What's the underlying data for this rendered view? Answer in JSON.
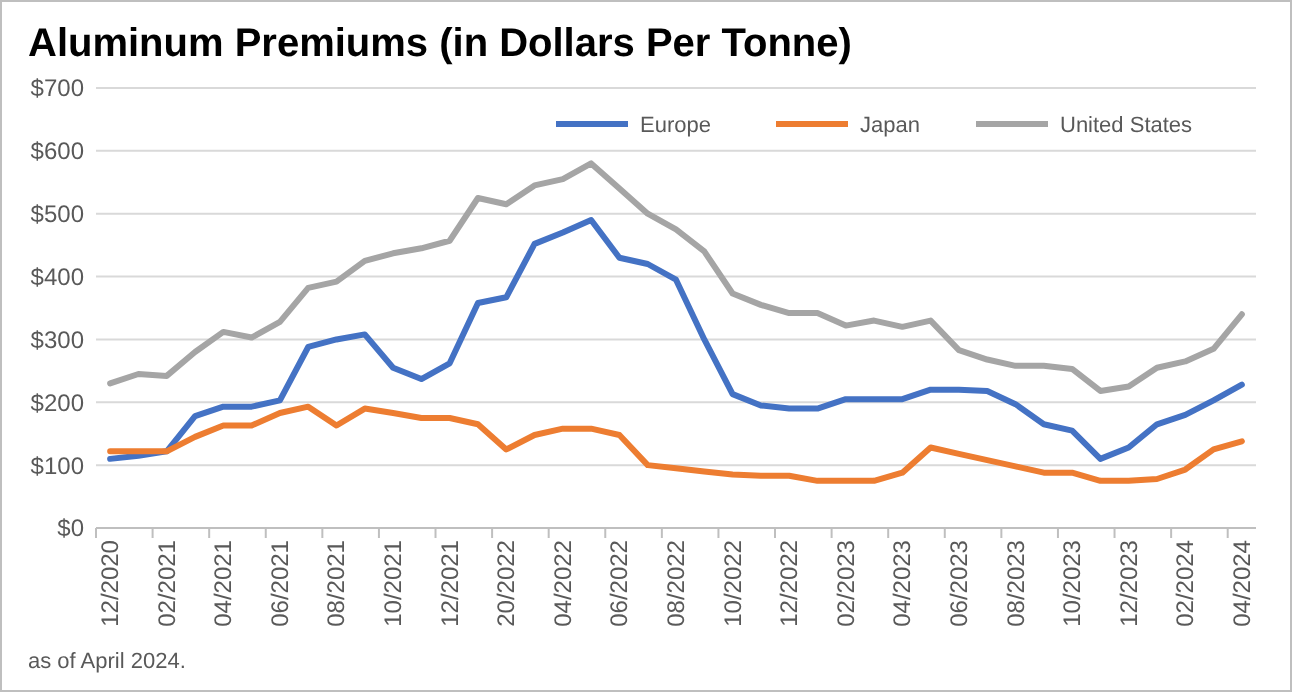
{
  "chart_data": {
    "type": "line",
    "title": "Aluminum Premiums (in Dollars Per Tonne)",
    "categories": [
      "12/2020",
      null,
      "02/2021",
      null,
      "04/2021",
      null,
      "06/2021",
      null,
      "08/2021",
      null,
      "10/2021",
      null,
      "12/2021",
      null,
      "20/2022",
      null,
      "04/2022",
      null,
      "06/2022",
      null,
      "08/2022",
      null,
      "10/2022",
      null,
      "12/2022",
      null,
      "02/2023",
      null,
      "04/2023",
      null,
      "06/2023",
      null,
      "08/2023",
      null,
      "10/2023",
      null,
      "12/2023",
      null,
      "02/2024",
      null,
      "04/2024"
    ],
    "series": [
      {
        "name": "Europe",
        "color": "#4472c4",
        "values": [
          110,
          115,
          122,
          178,
          193,
          193,
          203,
          288,
          300,
          308,
          255,
          237,
          262,
          358,
          367,
          452,
          470,
          490,
          430,
          420,
          395,
          300,
          213,
          195,
          190,
          190,
          205,
          205,
          205,
          220,
          220,
          218,
          197,
          165,
          155,
          110,
          128,
          165,
          180,
          203,
          228
        ]
      },
      {
        "name": "Japan",
        "color": "#ed7d31",
        "values": [
          122,
          122,
          122,
          145,
          163,
          163,
          183,
          193,
          163,
          190,
          183,
          175,
          175,
          165,
          125,
          148,
          158,
          158,
          148,
          100,
          95,
          90,
          85,
          83,
          83,
          75,
          75,
          75,
          88,
          128,
          118,
          108,
          98,
          88,
          88,
          75,
          75,
          78,
          93,
          125,
          138
        ]
      },
      {
        "name": "United States",
        "color": "#a5a5a5",
        "values": [
          230,
          245,
          242,
          280,
          312,
          303,
          328,
          382,
          392,
          425,
          437,
          445,
          457,
          525,
          515,
          545,
          555,
          580,
          540,
          500,
          475,
          440,
          373,
          355,
          342,
          342,
          322,
          330,
          320,
          330,
          283,
          268,
          258,
          258,
          253,
          218,
          225,
          255,
          265,
          285,
          340
        ]
      }
    ],
    "ylim": [
      0,
      700
    ],
    "yticks": [
      {
        "value": 0,
        "label": "$0"
      },
      {
        "value": 100,
        "label": "$100"
      },
      {
        "value": 200,
        "label": "$200"
      },
      {
        "value": 300,
        "label": "$300"
      },
      {
        "value": 400,
        "label": "$400"
      },
      {
        "value": 500,
        "label": "$500"
      },
      {
        "value": 600,
        "label": "$600"
      },
      {
        "value": 700,
        "label": "$700"
      }
    ],
    "grid": "y",
    "legend": "top right",
    "marker": "none",
    "line_style": "solid",
    "annotations": [
      "as of April 2024."
    ]
  }
}
